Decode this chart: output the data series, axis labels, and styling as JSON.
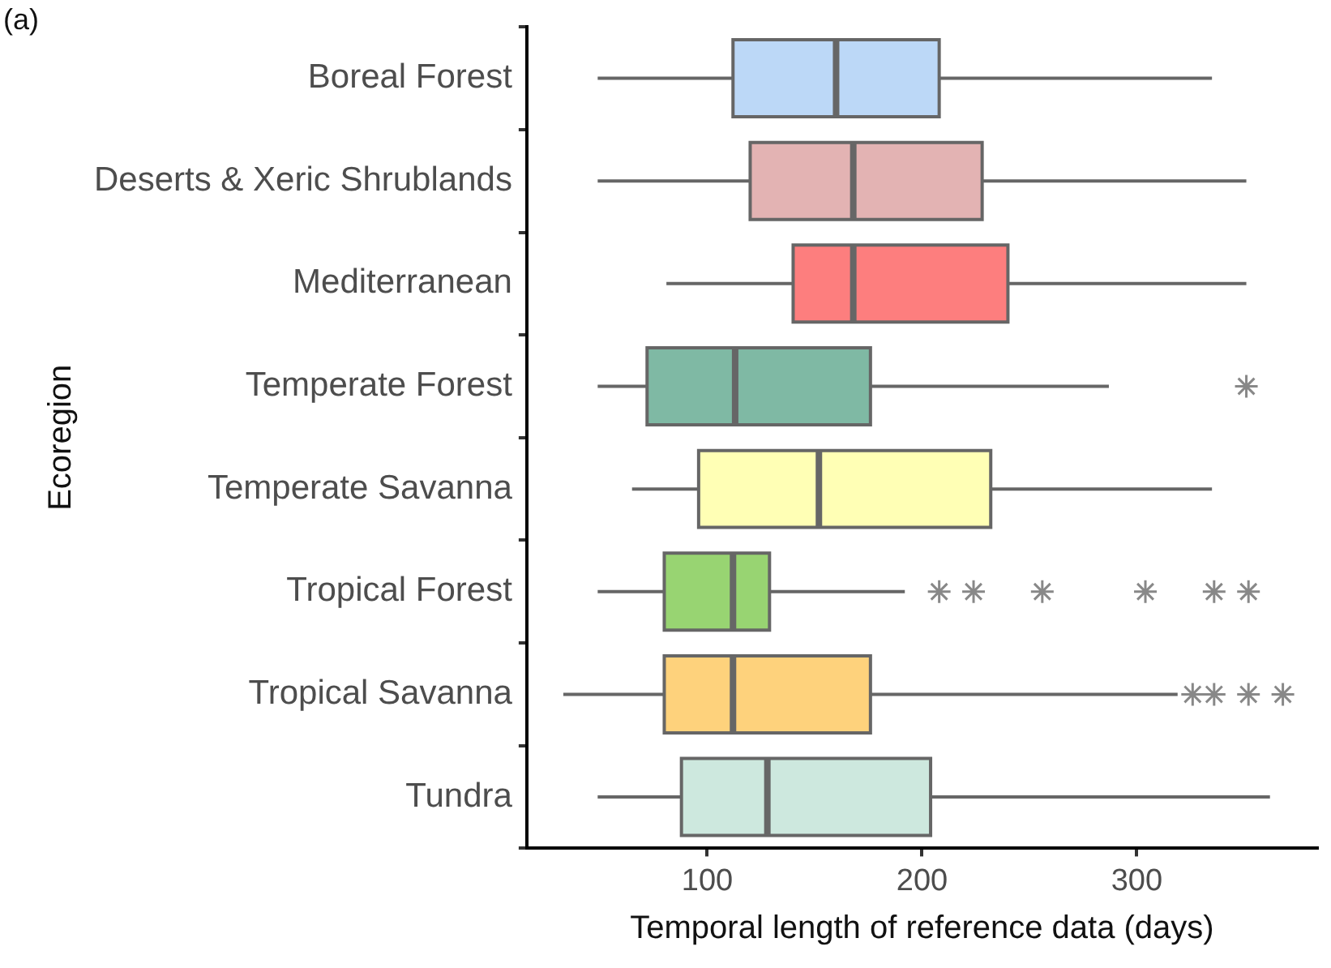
{
  "chart_data": {
    "type": "box",
    "orientation": "horizontal",
    "xlabel": "Temporal length of reference data (days)",
    "ylabel": "Ecoregion",
    "annotations": [
      "(a)"
    ],
    "categories": [
      "Boreal Forest",
      "Deserts & Xeric Shrublands",
      "Mediterranean",
      "Temperate Forest",
      "Temperate Savanna",
      "Tropical Forest",
      "Tropical Savanna",
      "Tundra"
    ],
    "colors": [
      "#bcd8f7",
      "#e3b3b3",
      "#fd7e7e",
      "#7fb9a4",
      "#ffffb5",
      "#98d472",
      "#fed27c",
      "#cde8de"
    ],
    "boxes": [
      {
        "low": 49,
        "q1": 112,
        "median": 160,
        "q3": 208,
        "high": 335
      },
      {
        "low": 49,
        "q1": 120,
        "median": 168,
        "q3": 228,
        "high": 351
      },
      {
        "low": 81,
        "q1": 140,
        "median": 168,
        "q3": 240,
        "high": 351
      },
      {
        "low": 49,
        "q1": 72,
        "median": 113,
        "q3": 176,
        "high": 287,
        "outliers": [
          351
        ]
      },
      {
        "low": 65,
        "q1": 96,
        "median": 152,
        "q3": 232,
        "high": 335
      },
      {
        "low": 49,
        "q1": 80,
        "median": 112,
        "q3": 129,
        "high": 192,
        "outliers": [
          208,
          224,
          256,
          304,
          336,
          352
        ]
      },
      {
        "low": 33,
        "q1": 80,
        "median": 112,
        "q3": 176,
        "high": 319,
        "outliers": [
          326,
          336,
          352,
          368
        ]
      },
      {
        "low": 49,
        "q1": 88,
        "median": 128,
        "q3": 204,
        "high": 362
      }
    ],
    "marker": "star",
    "xlim": [
      16,
      384
    ],
    "xticks": [
      100,
      200,
      300
    ],
    "grid": false,
    "legend": false
  }
}
